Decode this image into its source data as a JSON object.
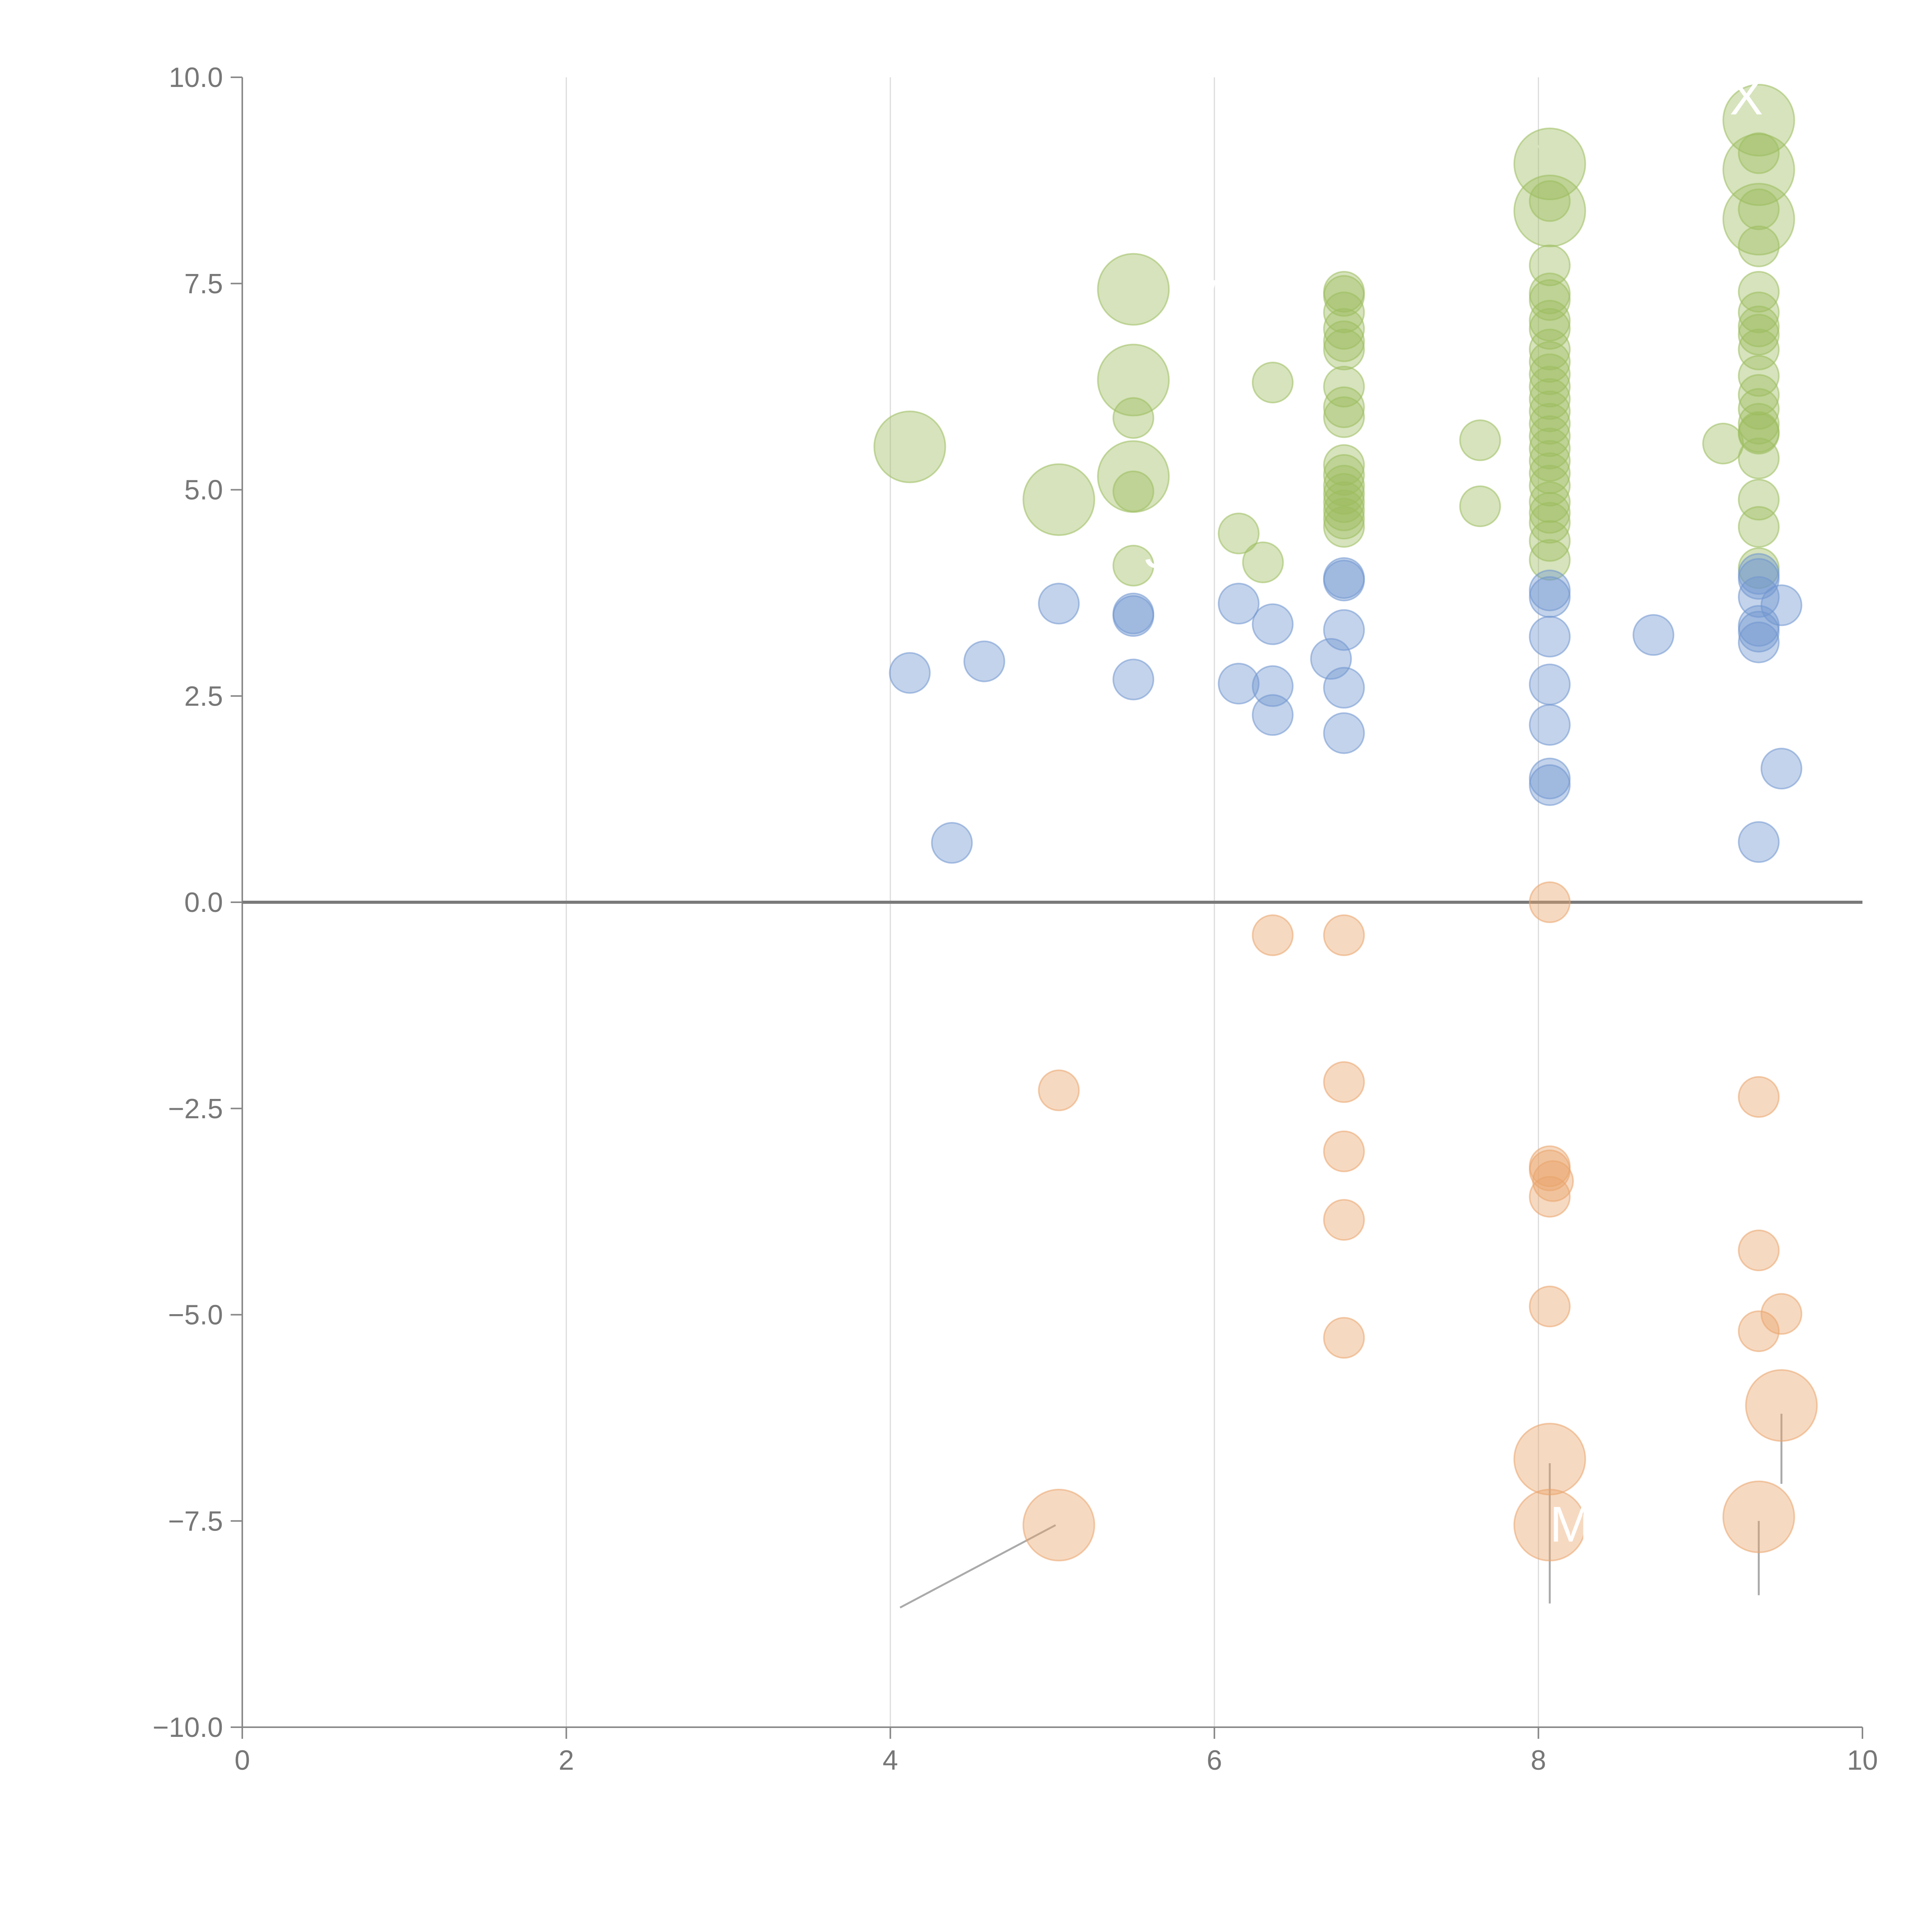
{
  "chart_data": {
    "type": "scatter",
    "title": "",
    "xlabel": "",
    "ylabel": "",
    "xlim": [
      0,
      10
    ],
    "ylim": [
      -10,
      10
    ],
    "grid": "vertical lines at x ticks",
    "x_ticks": [
      "0",
      "2",
      "4",
      "6",
      "8",
      "10"
    ],
    "y_ticks": [
      "10.0",
      "7.5",
      "5.0",
      "2.5",
      "0.0",
      "−2.5",
      "−5.0",
      "−7.5",
      "−10.0"
    ],
    "point_labels": [
      "W",
      "S",
      "X",
      "M"
    ],
    "legend": "none",
    "series": [
      {
        "color": "#9dbd5f",
        "points": [
          {
            "x": 4.12,
            "y": 5.52,
            "s": 2
          },
          {
            "x": 5.04,
            "y": 4.88,
            "s": 2
          },
          {
            "x": 5.5,
            "y": 7.43,
            "s": 2
          },
          {
            "x": 5.5,
            "y": 6.33,
            "s": 2
          },
          {
            "x": 5.5,
            "y": 5.87,
            "s": 1
          },
          {
            "x": 5.5,
            "y": 5.16,
            "s": 2
          },
          {
            "x": 5.5,
            "y": 4.98,
            "s": 1
          },
          {
            "x": 5.5,
            "y": 4.08,
            "s": 1
          },
          {
            "x": 6.15,
            "y": 4.47,
            "s": 1
          },
          {
            "x": 6.3,
            "y": 4.12,
            "s": 1
          },
          {
            "x": 6.36,
            "y": 6.3,
            "s": 1
          },
          {
            "x": 6.8,
            "y": 7.4,
            "s": 1
          },
          {
            "x": 6.8,
            "y": 7.35,
            "s": 1
          },
          {
            "x": 6.8,
            "y": 7.15,
            "s": 1
          },
          {
            "x": 6.8,
            "y": 6.95,
            "s": 1
          },
          {
            "x": 6.8,
            "y": 6.8,
            "s": 1
          },
          {
            "x": 6.8,
            "y": 6.7,
            "s": 1
          },
          {
            "x": 6.8,
            "y": 6.25,
            "s": 1
          },
          {
            "x": 6.8,
            "y": 6.0,
            "s": 1
          },
          {
            "x": 6.8,
            "y": 5.88,
            "s": 1
          },
          {
            "x": 6.8,
            "y": 5.3,
            "s": 1
          },
          {
            "x": 6.8,
            "y": 5.18,
            "s": 1
          },
          {
            "x": 6.8,
            "y": 5.05,
            "s": 1
          },
          {
            "x": 6.8,
            "y": 4.95,
            "s": 1
          },
          {
            "x": 6.8,
            "y": 4.85,
            "s": 1
          },
          {
            "x": 6.8,
            "y": 4.75,
            "s": 1
          },
          {
            "x": 6.8,
            "y": 4.65,
            "s": 1
          },
          {
            "x": 6.8,
            "y": 4.55,
            "s": 1
          },
          {
            "x": 7.64,
            "y": 5.6,
            "s": 1
          },
          {
            "x": 7.64,
            "y": 4.8,
            "s": 1
          },
          {
            "x": 8.07,
            "y": 8.95,
            "s": 2
          },
          {
            "x": 8.07,
            "y": 8.38,
            "s": 2
          },
          {
            "x": 8.07,
            "y": 8.5,
            "s": 1
          },
          {
            "x": 8.07,
            "y": 7.72,
            "s": 1
          },
          {
            "x": 8.07,
            "y": 7.38,
            "s": 1
          },
          {
            "x": 8.07,
            "y": 7.3,
            "s": 1
          },
          {
            "x": 8.07,
            "y": 7.05,
            "s": 1
          },
          {
            "x": 8.07,
            "y": 6.95,
            "s": 1
          },
          {
            "x": 8.07,
            "y": 6.7,
            "s": 1
          },
          {
            "x": 8.07,
            "y": 6.55,
            "s": 1
          },
          {
            "x": 8.07,
            "y": 6.4,
            "s": 1
          },
          {
            "x": 8.07,
            "y": 6.25,
            "s": 1
          },
          {
            "x": 8.07,
            "y": 6.1,
            "s": 1
          },
          {
            "x": 8.07,
            "y": 5.95,
            "s": 1
          },
          {
            "x": 8.07,
            "y": 5.8,
            "s": 1
          },
          {
            "x": 8.07,
            "y": 5.65,
            "s": 1
          },
          {
            "x": 8.07,
            "y": 5.5,
            "s": 1
          },
          {
            "x": 8.07,
            "y": 5.35,
            "s": 1
          },
          {
            "x": 8.07,
            "y": 5.2,
            "s": 1
          },
          {
            "x": 8.07,
            "y": 5.05,
            "s": 1
          },
          {
            "x": 8.07,
            "y": 4.85,
            "s": 1
          },
          {
            "x": 8.07,
            "y": 4.72,
            "s": 1
          },
          {
            "x": 8.07,
            "y": 4.6,
            "s": 1
          },
          {
            "x": 8.07,
            "y": 4.38,
            "s": 1
          },
          {
            "x": 8.07,
            "y": 4.15,
            "s": 1
          },
          {
            "x": 9.14,
            "y": 5.56,
            "s": 1
          },
          {
            "x": 9.36,
            "y": 9.48,
            "s": 2
          },
          {
            "x": 9.36,
            "y": 8.88,
            "s": 2
          },
          {
            "x": 9.36,
            "y": 8.28,
            "s": 2
          },
          {
            "x": 9.36,
            "y": 9.08,
            "s": 1
          },
          {
            "x": 9.36,
            "y": 8.4,
            "s": 1
          },
          {
            "x": 9.36,
            "y": 7.95,
            "s": 1
          },
          {
            "x": 9.36,
            "y": 7.4,
            "s": 1
          },
          {
            "x": 9.36,
            "y": 7.15,
            "s": 1
          },
          {
            "x": 9.36,
            "y": 6.98,
            "s": 1
          },
          {
            "x": 9.36,
            "y": 6.88,
            "s": 1
          },
          {
            "x": 9.36,
            "y": 6.7,
            "s": 1
          },
          {
            "x": 9.36,
            "y": 6.38,
            "s": 1
          },
          {
            "x": 9.36,
            "y": 6.15,
            "s": 1
          },
          {
            "x": 9.36,
            "y": 5.98,
            "s": 1
          },
          {
            "x": 9.36,
            "y": 5.8,
            "s": 1
          },
          {
            "x": 9.36,
            "y": 5.7,
            "s": 1
          },
          {
            "x": 9.36,
            "y": 5.68,
            "s": 1
          },
          {
            "x": 9.36,
            "y": 5.38,
            "s": 1
          },
          {
            "x": 9.36,
            "y": 4.88,
            "s": 1
          },
          {
            "x": 9.36,
            "y": 4.55,
            "s": 1
          },
          {
            "x": 9.36,
            "y": 4.05,
            "s": 1
          }
        ]
      },
      {
        "color": "#6f95cf",
        "points": [
          {
            "x": 4.12,
            "y": 2.78,
            "s": 1
          },
          {
            "x": 4.38,
            "y": 0.72,
            "s": 1
          },
          {
            "x": 4.58,
            "y": 2.92,
            "s": 1
          },
          {
            "x": 5.04,
            "y": 3.62,
            "s": 1
          },
          {
            "x": 5.5,
            "y": 3.5,
            "s": 1
          },
          {
            "x": 5.5,
            "y": 3.47,
            "s": 1
          },
          {
            "x": 5.5,
            "y": 2.7,
            "s": 1
          },
          {
            "x": 6.15,
            "y": 3.62,
            "s": 1
          },
          {
            "x": 6.15,
            "y": 2.65,
            "s": 1
          },
          {
            "x": 6.36,
            "y": 3.37,
            "s": 1
          },
          {
            "x": 6.36,
            "y": 2.62,
            "s": 1
          },
          {
            "x": 6.36,
            "y": 2.27,
            "s": 1
          },
          {
            "x": 6.72,
            "y": 2.95,
            "s": 1
          },
          {
            "x": 6.8,
            "y": 3.93,
            "s": 1
          },
          {
            "x": 6.8,
            "y": 3.9,
            "s": 1
          },
          {
            "x": 6.8,
            "y": 3.3,
            "s": 1
          },
          {
            "x": 6.8,
            "y": 2.6,
            "s": 1
          },
          {
            "x": 6.8,
            "y": 2.05,
            "s": 1
          },
          {
            "x": 8.07,
            "y": 3.78,
            "s": 1
          },
          {
            "x": 8.07,
            "y": 3.7,
            "s": 1
          },
          {
            "x": 8.07,
            "y": 3.22,
            "s": 1
          },
          {
            "x": 8.07,
            "y": 2.64,
            "s": 1
          },
          {
            "x": 8.07,
            "y": 2.15,
            "s": 1
          },
          {
            "x": 8.07,
            "y": 1.5,
            "s": 1
          },
          {
            "x": 8.07,
            "y": 1.42,
            "s": 1
          },
          {
            "x": 8.71,
            "y": 3.24,
            "s": 1
          },
          {
            "x": 9.36,
            "y": 3.98,
            "s": 1
          },
          {
            "x": 9.36,
            "y": 3.92,
            "s": 1
          },
          {
            "x": 9.36,
            "y": 3.7,
            "s": 1
          },
          {
            "x": 9.36,
            "y": 3.35,
            "s": 1
          },
          {
            "x": 9.36,
            "y": 3.28,
            "s": 1
          },
          {
            "x": 9.36,
            "y": 3.15,
            "s": 1
          },
          {
            "x": 9.36,
            "y": 0.73,
            "s": 1
          },
          {
            "x": 9.5,
            "y": 3.6,
            "s": 1
          },
          {
            "x": 9.5,
            "y": 1.62,
            "s": 1
          }
        ]
      },
      {
        "color": "#e9a46c",
        "points": [
          {
            "x": 5.04,
            "y": -2.28,
            "s": 1
          },
          {
            "x": 5.04,
            "y": -7.55,
            "s": 2
          },
          {
            "x": 6.36,
            "y": -0.4,
            "s": 1
          },
          {
            "x": 6.8,
            "y": -0.4,
            "s": 1
          },
          {
            "x": 6.8,
            "y": -2.18,
            "s": 1
          },
          {
            "x": 6.8,
            "y": -3.02,
            "s": 1
          },
          {
            "x": 6.8,
            "y": -3.85,
            "s": 1
          },
          {
            "x": 6.8,
            "y": -5.28,
            "s": 1
          },
          {
            "x": 8.07,
            "y": 0.0,
            "s": 1
          },
          {
            "x": 8.07,
            "y": -3.2,
            "s": 1
          },
          {
            "x": 8.07,
            "y": -3.25,
            "s": 1
          },
          {
            "x": 8.09,
            "y": -3.38,
            "s": 1
          },
          {
            "x": 8.07,
            "y": -3.57,
            "s": 1
          },
          {
            "x": 8.07,
            "y": -4.9,
            "s": 1
          },
          {
            "x": 8.07,
            "y": -6.75,
            "s": 2
          },
          {
            "x": 8.07,
            "y": -7.55,
            "s": 2
          },
          {
            "x": 9.36,
            "y": -2.36,
            "s": 1
          },
          {
            "x": 9.36,
            "y": -4.22,
            "s": 1
          },
          {
            "x": 9.36,
            "y": -5.2,
            "s": 1
          },
          {
            "x": 9.36,
            "y": -7.45,
            "s": 2
          },
          {
            "x": 9.5,
            "y": -4.99,
            "s": 1
          },
          {
            "x": 9.5,
            "y": -6.1,
            "s": 2
          }
        ]
      }
    ]
  }
}
